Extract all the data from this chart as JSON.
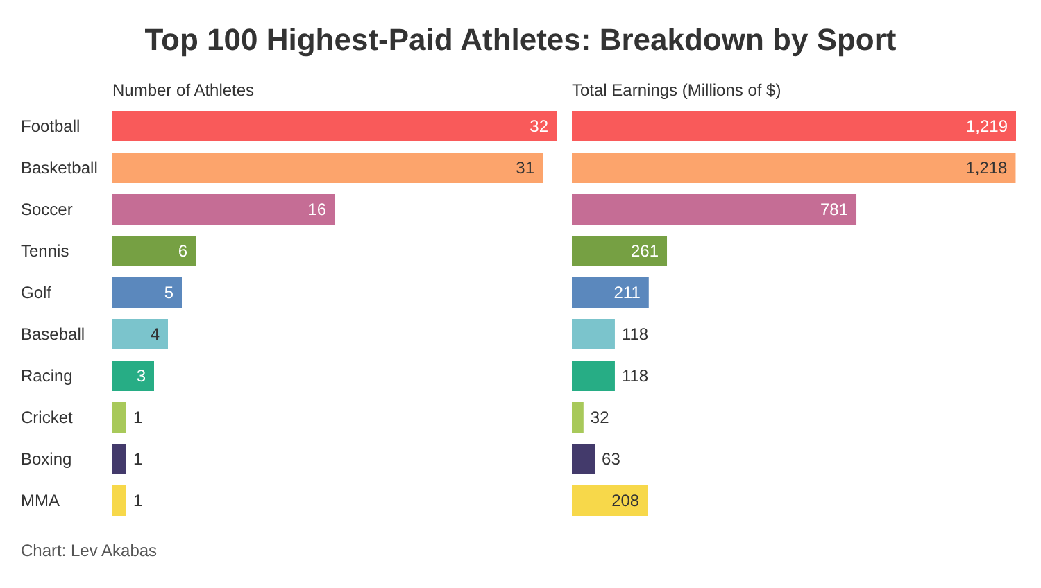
{
  "chart_data": [
    {
      "type": "bar",
      "orientation": "horizontal",
      "title": "Top 100 Highest-Paid Athletes: Breakdown by Sport",
      "subtitle": "Number of Athletes",
      "categories": [
        "Football",
        "Basketball",
        "Soccer",
        "Tennis",
        "Golf",
        "Baseball",
        "Racing",
        "Cricket",
        "Boxing",
        "MMA"
      ],
      "values": [
        32,
        31,
        16,
        6,
        5,
        4,
        3,
        1,
        1,
        1
      ],
      "colors": [
        "#f95a5a",
        "#fca46c",
        "#c56d95",
        "#76a043",
        "#5b88bd",
        "#7bc4cc",
        "#27ad85",
        "#a8c95a",
        "#433a6b",
        "#f7d84a"
      ],
      "data_labels": true,
      "tick_labels": "y",
      "annotations": [
        "Chart: Lev Akabas"
      ]
    },
    {
      "type": "bar",
      "orientation": "horizontal",
      "title": "Total Earnings (Millions of $)",
      "categories": [
        null,
        null,
        null,
        null,
        null,
        null,
        null,
        null,
        null,
        null
      ],
      "values": [
        1219,
        1218,
        781,
        261,
        211,
        118,
        118,
        32,
        63,
        208
      ],
      "value_labels": [
        "1,219",
        "1,218",
        "781",
        "261",
        "211",
        "118",
        "118",
        "32",
        "63",
        "208"
      ],
      "colors": [
        "#f95a5a",
        "#fca46c",
        "#c56d95",
        "#76a043",
        "#5b88bd",
        "#7bc4cc",
        "#27ad85",
        "#a8c95a",
        "#433a6b",
        "#f7d84a"
      ],
      "tick_labels": false
    }
  ]
}
